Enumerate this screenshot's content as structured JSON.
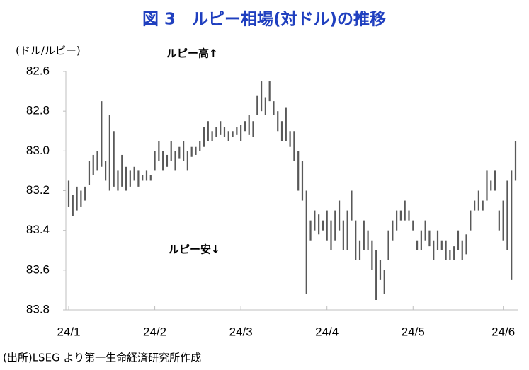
{
  "chart_data": {
    "type": "range-bar",
    "title": "図 3　ルピー相場(対ドル)の推移",
    "y_label": "(ドル/ルピー)",
    "annotations": [
      "ルピー高↑",
      "ルピー安↓"
    ],
    "source": "(出所)LSEG より第一生命経済研究所作成",
    "color": "#595959",
    "inverted": true,
    "ylim": [
      82.6,
      83.8
    ],
    "yticks": [
      82.6,
      82.8,
      {
        "value": 83,
        "label": "83.0"
      },
      83.2,
      83.4,
      83.6,
      83.8
    ],
    "categories": [
      "24/1",
      null,
      null,
      null,
      null,
      null,
      null,
      null,
      null,
      null,
      null,
      null,
      null,
      null,
      null,
      null,
      null,
      null,
      null,
      null,
      null,
      "24/2",
      null,
      null,
      null,
      null,
      null,
      null,
      null,
      null,
      null,
      null,
      null,
      null,
      null,
      null,
      null,
      null,
      null,
      null,
      null,
      null,
      "24/3",
      null,
      null,
      null,
      null,
      null,
      null,
      null,
      null,
      null,
      null,
      null,
      null,
      null,
      null,
      null,
      null,
      null,
      null,
      null,
      null,
      "24/4",
      null,
      null,
      null,
      null,
      null,
      null,
      null,
      null,
      null,
      null,
      null,
      null,
      null,
      null,
      null,
      null,
      null,
      null,
      null,
      null,
      "24/5",
      null,
      null,
      null,
      null,
      null,
      null,
      null,
      null,
      null,
      null,
      null,
      null,
      null,
      null,
      null,
      null,
      null,
      null,
      null,
      null,
      null,
      "24/6",
      null,
      null,
      null
    ],
    "low": [
      83.15,
      83.22,
      83.18,
      83.2,
      83.18,
      83.05,
      83.02,
      83.0,
      82.75,
      83.05,
      82.82,
      82.9,
      83.1,
      83.02,
      83.08,
      83.1,
      83.08,
      83.1,
      83.12,
      83.1,
      83.12,
      83.0,
      82.95,
      83.0,
      83.02,
      82.95,
      83.0,
      82.98,
      82.95,
      83.0,
      82.98,
      82.98,
      82.95,
      82.88,
      82.85,
      82.9,
      82.88,
      82.85,
      82.88,
      82.9,
      82.9,
      82.88,
      82.87,
      82.85,
      82.82,
      82.85,
      82.72,
      82.65,
      82.73,
      82.65,
      82.75,
      82.8,
      82.85,
      82.78,
      82.9,
      82.9,
      83.0,
      83.05,
      83.2,
      83.35,
      83.3,
      83.32,
      83.35,
      83.3,
      83.35,
      83.3,
      83.25,
      83.35,
      83.3,
      83.2,
      83.35,
      83.45,
      83.35,
      83.4,
      83.45,
      83.5,
      83.55,
      83.6,
      83.4,
      83.35,
      83.3,
      83.3,
      83.25,
      83.3,
      83.35,
      83.45,
      83.4,
      83.35,
      83.4,
      83.45,
      83.4,
      83.45,
      83.45,
      83.5,
      83.48,
      83.4,
      83.45,
      83.42,
      83.3,
      83.25,
      83.2,
      83.25,
      83.1,
      83.15,
      83.1,
      83.3,
      83.25,
      83.15,
      83.1,
      82.95
    ],
    "high": [
      83.28,
      83.33,
      83.3,
      83.28,
      83.25,
      83.17,
      83.12,
      83.1,
      83.08,
      83.15,
      83.2,
      83.18,
      83.2,
      83.18,
      83.2,
      83.18,
      83.15,
      83.18,
      83.15,
      83.15,
      83.15,
      83.1,
      83.05,
      83.1,
      83.08,
      83.05,
      83.1,
      83.04,
      83.05,
      83.1,
      83.03,
      83.02,
      83.0,
      82.98,
      82.95,
      82.95,
      82.93,
      82.92,
      82.93,
      82.95,
      82.93,
      82.92,
      82.95,
      82.9,
      82.92,
      82.93,
      82.82,
      82.8,
      82.82,
      82.75,
      82.82,
      82.9,
      82.95,
      82.95,
      82.98,
      83.05,
      83.2,
      83.25,
      83.72,
      83.45,
      83.4,
      83.42,
      83.4,
      83.45,
      83.5,
      83.45,
      83.4,
      83.5,
      83.5,
      83.35,
      83.55,
      83.55,
      83.5,
      83.5,
      83.6,
      83.75,
      83.65,
      83.72,
      83.55,
      83.45,
      83.4,
      83.35,
      83.35,
      83.35,
      83.4,
      83.5,
      83.5,
      83.45,
      83.48,
      83.55,
      83.5,
      83.5,
      83.55,
      83.55,
      83.55,
      83.5,
      83.55,
      83.52,
      83.4,
      83.3,
      83.3,
      83.3,
      83.25,
      83.2,
      83.2,
      83.4,
      83.45,
      83.5,
      83.65,
      83.15
    ]
  }
}
